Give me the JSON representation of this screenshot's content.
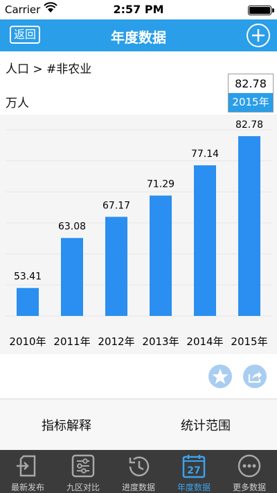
{
  "status": {
    "carrier": "Carrier",
    "time": "2:57 PM"
  },
  "nav": {
    "back": "返回",
    "title": "年度数据"
  },
  "breadcrumb": "人口 > #非农业",
  "unit": "万人",
  "selected": {
    "value": "82.78",
    "year": "2015年"
  },
  "chart_data": {
    "type": "bar",
    "categories": [
      "2010年",
      "2011年",
      "2012年",
      "2013年",
      "2014年",
      "2015年"
    ],
    "values": [
      53.41,
      63.08,
      67.17,
      71.29,
      77.14,
      82.78
    ],
    "value_labels": [
      "53.41",
      "63.08",
      "67.17",
      "71.29",
      "77.14",
      "82.78"
    ],
    "ylim": [
      48,
      84
    ],
    "grid": true,
    "bar_color": "#2a8ff0"
  },
  "actions": {
    "favorite_icon": "star-icon",
    "share_icon": "share-icon"
  },
  "links": {
    "indicator": "指标解释",
    "scope": "统计范围"
  },
  "tabs": [
    {
      "label": "最新发布",
      "icon": "latest-release-icon"
    },
    {
      "label": "九区对比",
      "icon": "compare-icon"
    },
    {
      "label": "进度数据",
      "icon": "progress-icon"
    },
    {
      "label": "年度数据",
      "icon": "calendar-icon",
      "day": "27"
    },
    {
      "label": "更多数据",
      "icon": "more-icon"
    }
  ],
  "colors": {
    "accent": "#2a9ee8",
    "tabbar": "#3b3b3b",
    "active_tab": "#3aa3f0"
  }
}
